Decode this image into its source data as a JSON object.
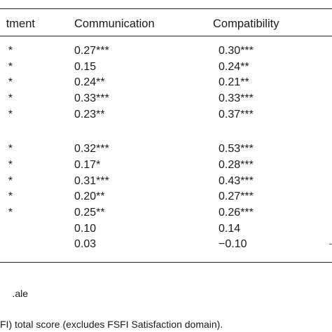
{
  "table": {
    "headers": [
      "tment",
      "Communication",
      "Compatibility"
    ],
    "rows": [
      {
        "left": "*",
        "communication": "0.27***",
        "compatibility": "0.30***"
      },
      {
        "left": "*",
        "communication": "0.15",
        "compatibility": "0.24**"
      },
      {
        "left": "*",
        "communication": "0.24**",
        "compatibility": "0.21**"
      },
      {
        "left": "*",
        "communication": "0.33***",
        "compatibility": "0.33***"
      },
      {
        "left": "*",
        "communication": "0.23**",
        "compatibility": "0.37***"
      },
      {
        "left": "*",
        "communication": "0.32***",
        "compatibility": "0.53***"
      },
      {
        "left": "*",
        "communication": "0.17*",
        "compatibility": "0.28***"
      },
      {
        "left": "*",
        "communication": "0.31***",
        "compatibility": "0.43***"
      },
      {
        "left": "*",
        "communication": "0.20**",
        "compatibility": "0.27***"
      },
      {
        "left": "*",
        "communication": "0.25**",
        "compatibility": "0.26***"
      },
      {
        "left": "",
        "communication": "0.10",
        "compatibility": "0.14"
      },
      {
        "left": "",
        "communication": "0.03",
        "compatibility": "−0.10"
      }
    ]
  },
  "notes": [
    "ale.",
    "FI) total score (excludes FSFI Satisfaction domain)."
  ]
}
